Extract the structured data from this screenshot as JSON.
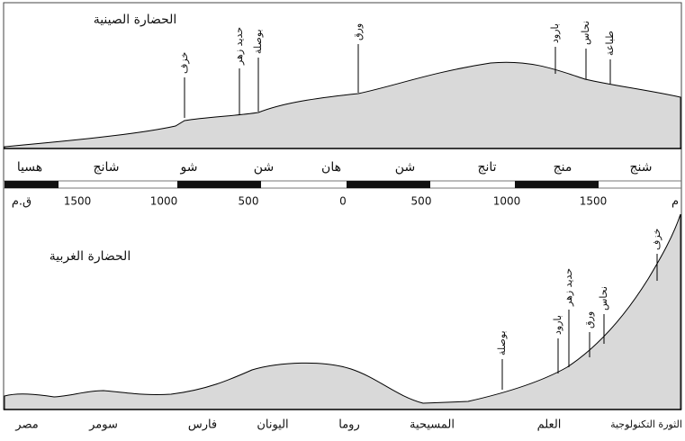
{
  "chinese": {
    "title": "الحضارة الصينية",
    "annotations": [
      "خزف",
      "حديد زهر",
      "بوصلة",
      "ورق",
      "بارود",
      "نحاس",
      "طباعة"
    ],
    "dynasties": [
      "هسيا",
      "شانج",
      "شو",
      "شن",
      "هان",
      "شن",
      "تانج",
      "منج",
      "شنج"
    ]
  },
  "timeline": {
    "bc": "ق.م",
    "ad": "م",
    "labels": [
      "1500",
      "1000",
      "500",
      "0",
      "500",
      "1000",
      "1500"
    ]
  },
  "western": {
    "title": "الحضارة الغربية",
    "annotations": [
      "بوصلة",
      "بارود",
      "حديد زهر",
      "ورق",
      "نحاس",
      "خزف"
    ],
    "eras": [
      "مصر",
      "سومر",
      "فارس",
      "اليونان",
      "روما",
      "المسيحية",
      "العلم",
      "الثورة التكنولوجية"
    ]
  }
}
